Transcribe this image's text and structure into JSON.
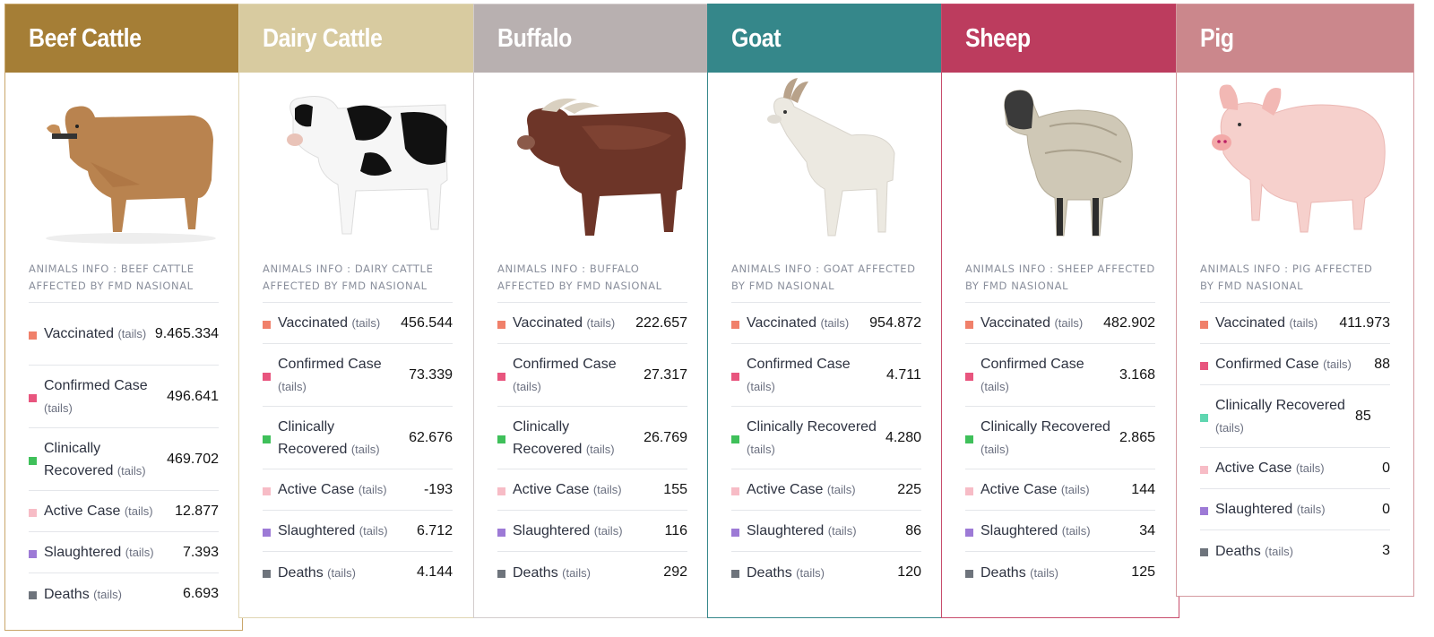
{
  "unit_label": "(tails)",
  "cards": [
    {
      "title": "Beef Cattle",
      "color": "#a57e36",
      "border": "#c9a66a",
      "image": "beef-cattle-image",
      "info": "ANIMALS INFO : BEEF CATTLE AFFECTED BY FMD NASIONAL",
      "stats": [
        {
          "label": "Vaccinated",
          "value": "9.465.334"
        },
        {
          "label": "Confirmed Case",
          "value": "496.641"
        },
        {
          "label": "Clinically Recovered",
          "value": "469.702"
        },
        {
          "label": "Active Case",
          "value": "12.877"
        },
        {
          "label": "Slaughtered",
          "value": "7.393"
        },
        {
          "label": "Deaths",
          "value": "6.693"
        }
      ]
    },
    {
      "title": "Dairy Cattle",
      "color": "#d8cba0",
      "border": "#e0d6b4",
      "image": "dairy-cattle-image",
      "info": "ANIMALS INFO : DAIRY CATTLE AFFECTED BY FMD NASIONAL",
      "stats": [
        {
          "label": "Vaccinated",
          "value": "456.544"
        },
        {
          "label": "Confirmed Case",
          "value": "73.339"
        },
        {
          "label": "Clinically Recovered",
          "value": "62.676"
        },
        {
          "label": "Active Case",
          "value": "-193"
        },
        {
          "label": "Slaughtered",
          "value": "6.712"
        },
        {
          "label": "Deaths",
          "value": "4.144"
        }
      ]
    },
    {
      "title": "Buffalo",
      "color": "#b8b0b0",
      "border": "#d2cccc",
      "image": "buffalo-image",
      "info": "ANIMALS INFO : BUFFALO AFFECTED BY FMD NASIONAL",
      "stats": [
        {
          "label": "Vaccinated",
          "value": "222.657"
        },
        {
          "label": "Confirmed Case",
          "value": "27.317"
        },
        {
          "label": "Clinically Recovered",
          "value": "26.769"
        },
        {
          "label": "Active Case",
          "value": "155"
        },
        {
          "label": "Slaughtered",
          "value": "116"
        },
        {
          "label": "Deaths",
          "value": "292"
        }
      ]
    },
    {
      "title": "Goat",
      "color": "#35878a",
      "border": "#35878a",
      "image": "goat-image",
      "info": "ANIMALS INFO : GOAT AFFECTED BY FMD NASIONAL",
      "stats": [
        {
          "label": "Vaccinated",
          "value": "954.872"
        },
        {
          "label": "Confirmed Case",
          "value": "4.711"
        },
        {
          "label": "Clinically Recovered",
          "value": "4.280"
        },
        {
          "label": "Active Case",
          "value": "225"
        },
        {
          "label": "Slaughtered",
          "value": "86"
        },
        {
          "label": "Deaths",
          "value": "120"
        }
      ]
    },
    {
      "title": "Sheep",
      "color": "#bc3c5e",
      "border": "#c84d6c",
      "image": "sheep-image",
      "info": "ANIMALS INFO : SHEEP AFFECTED BY FMD NASIONAL",
      "stats": [
        {
          "label": "Vaccinated",
          "value": "482.902"
        },
        {
          "label": "Confirmed Case",
          "value": "3.168"
        },
        {
          "label": "Clinically Recovered",
          "value": "2.865"
        },
        {
          "label": "Active Case",
          "value": "144"
        },
        {
          "label": "Slaughtered",
          "value": "34"
        },
        {
          "label": "Deaths",
          "value": "125"
        }
      ]
    },
    {
      "title": "Pig",
      "color": "#cb878c",
      "border": "#d49aa0",
      "image": "pig-image",
      "info": "ANIMALS INFO : PIG AFFECTED BY FMD NASIONAL",
      "stats": [
        {
          "label": "Vaccinated",
          "value": "411.973"
        },
        {
          "label": "Confirmed Case",
          "value": "88"
        },
        {
          "label": "Clinically Recovered",
          "value": "85"
        },
        {
          "label": "Active Case",
          "value": "0"
        },
        {
          "label": "Slaughtered",
          "value": "0"
        },
        {
          "label": "Deaths",
          "value": "3"
        }
      ]
    }
  ],
  "legend_colors": {
    "Vaccinated": "#f0806a",
    "Confirmed Case": "#e8557e",
    "Clinically Recovered": "#3fc05a",
    "Active Case": "#f7bcc6",
    "Slaughtered": "#9d7ad6",
    "Deaths": "#6e747c"
  },
  "pig_recovered_color": "#5fd6b0"
}
